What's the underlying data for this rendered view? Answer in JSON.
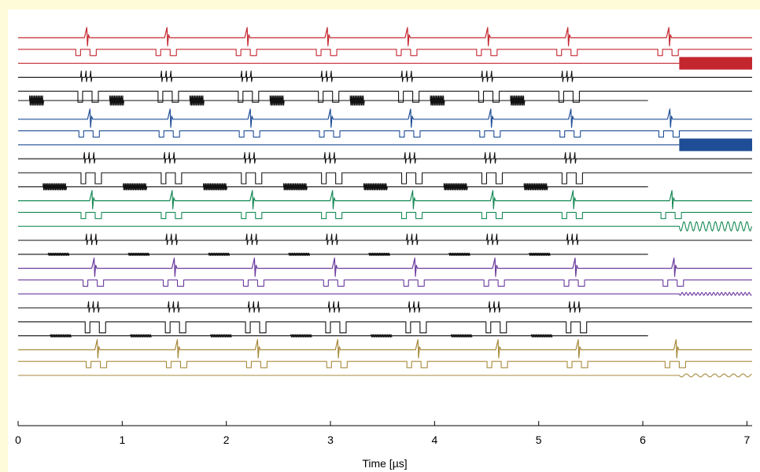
{
  "chart_data": {
    "type": "line",
    "title": "",
    "xlabel": "Time [µs]",
    "ylabel": "",
    "xlim": [
      0,
      7.05
    ],
    "xticks": [
      0,
      1,
      2,
      3,
      4,
      5,
      6,
      7
    ],
    "xtick_labels": [
      "0",
      "1",
      "2",
      "3",
      "4",
      "5",
      "6",
      "7"
    ],
    "grid": false,
    "legend": "none",
    "pulse_period_us": 0.77,
    "pulses_per_trace": 8,
    "groups": [
      {
        "color": "#c4262e",
        "traces": [
          "spikes",
          "gate",
          "cw_thick"
        ],
        "spike_times_us": [
          0.66,
          1.43,
          2.2,
          2.97,
          3.74,
          4.51,
          5.28,
          6.25
        ],
        "black_traces": [
          "bursts_a",
          "gate",
          "ringdown"
        ]
      },
      {
        "color": "#1f4e96",
        "traces": [
          "spikes",
          "gate",
          "cw_thick"
        ],
        "spike_times_us": [
          0.69,
          1.46,
          2.23,
          3.0,
          3.77,
          4.54,
          5.31,
          6.26
        ],
        "black_traces": [
          "bursts_b",
          "gate",
          "long_blocks"
        ]
      },
      {
        "color": "#178a57",
        "traces": [
          "spikes",
          "gate",
          "sine"
        ],
        "spike_times_us": [
          0.71,
          1.48,
          2.25,
          3.02,
          3.79,
          4.56,
          5.33,
          6.28
        ],
        "black_traces": [
          "bursts_c",
          "short_blocks"
        ]
      },
      {
        "color": "#6a3a9e",
        "traces": [
          "spikes",
          "gate",
          "small_sine"
        ],
        "spike_times_us": [
          0.73,
          1.5,
          2.27,
          3.04,
          3.81,
          4.58,
          5.35,
          6.3
        ],
        "black_traces": [
          "bursts_d",
          "gate",
          "short_blocks"
        ]
      },
      {
        "color": "#a88a3c",
        "traces": [
          "spikes",
          "gate",
          "tiny_sine"
        ],
        "spike_times_us": [
          0.76,
          1.53,
          2.3,
          3.07,
          3.84,
          4.61,
          5.38,
          6.32
        ],
        "black_traces": []
      }
    ],
    "cw_start_us": 6.35
  }
}
